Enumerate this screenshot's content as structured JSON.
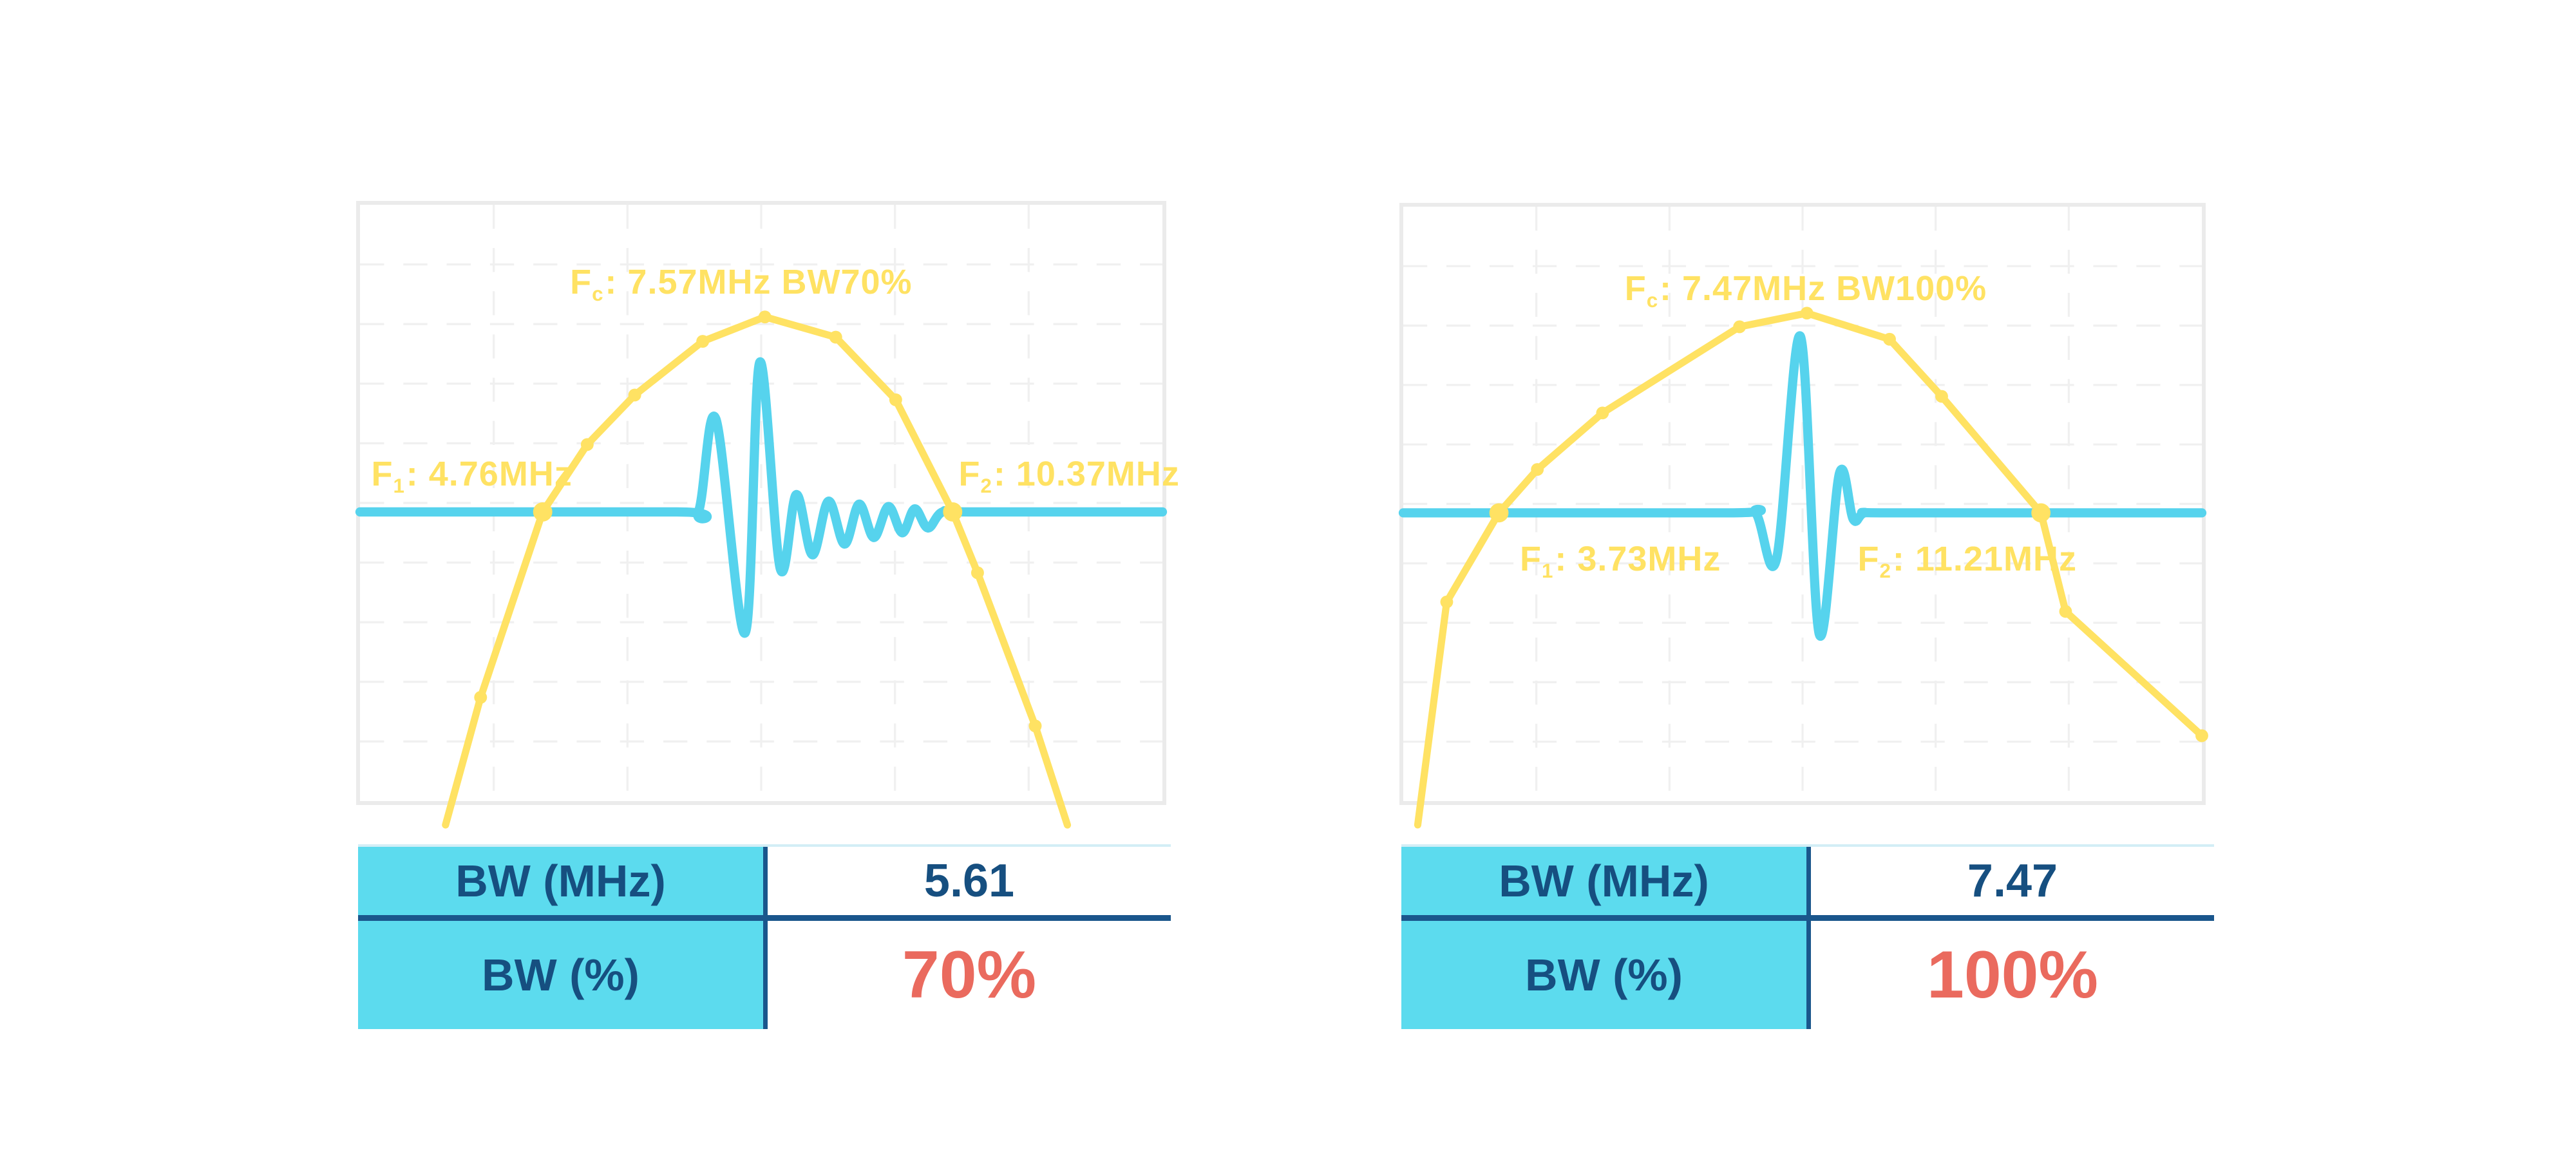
{
  "colors": {
    "yellow": "#FFE263",
    "cyan": "#56D3ED",
    "table_fill": "#5CDBEE",
    "navy": "#164F80",
    "divider_navy": "#1A568C",
    "red": "#EA6A5E",
    "panel_border": "#EBEBEB",
    "grid": "#F0F0F0",
    "table_top_line": "#D3EEF6"
  },
  "panels": [
    {
      "id": "left",
      "fc_label": {
        "prefix": "F",
        "sub": "c",
        "rest": ": 7.57MHz BW70%"
      },
      "f1_label": {
        "prefix": "F",
        "sub": "1",
        "rest": ": 4.76MHz"
      },
      "f2_label": {
        "prefix": "F",
        "sub": "2",
        "rest": ": 10.37MHz"
      },
      "table": {
        "rows": [
          {
            "label": "BW (MHz)",
            "value": "5.61"
          },
          {
            "label": "BW (%)",
            "value": "70%"
          }
        ]
      }
    },
    {
      "id": "right",
      "fc_label": {
        "prefix": "F",
        "sub": "c",
        "rest": ": 7.47MHz BW100%"
      },
      "f1_label": {
        "prefix": "F",
        "sub": "1",
        "rest": ": 3.73MHz"
      },
      "f2_label": {
        "prefix": "F",
        "sub": "2",
        "rest": ": 11.21MHz"
      },
      "table": {
        "rows": [
          {
            "label": "BW (MHz)",
            "value": "7.47"
          },
          {
            "label": "BW (%)",
            "value": "100%"
          }
        ]
      }
    }
  ],
  "chart_data": [
    {
      "type": "line",
      "title": "Fc: 7.57MHz BW70%",
      "annotations": [
        "Fc: 7.57MHz BW70%",
        "F1: 4.76MHz",
        "F2: 10.37MHz"
      ],
      "fc_mhz": 7.57,
      "f1_mhz": 4.76,
      "f2_mhz": 10.37,
      "bw_mhz": 5.61,
      "bw_percent": 70,
      "xlabel": "",
      "ylabel": "",
      "xlim": [
        2.26,
        13.24
      ],
      "ylim": [
        0,
        1
      ],
      "threshold_amp": 0.485,
      "grid": {
        "cols": 6,
        "rows": 10,
        "style": "dashed"
      },
      "series": [
        {
          "name": "spectrum",
          "points": [
            [
              3.43,
              -0.04,
              ""
            ],
            [
              3.91,
              0.174,
              "dot"
            ],
            [
              4.76,
              0.485,
              "big"
            ],
            [
              5.37,
              0.598,
              "dot"
            ],
            [
              6.02,
              0.681,
              "dot"
            ],
            [
              6.95,
              0.771,
              "dot"
            ],
            [
              7.8,
              0.812,
              "dot"
            ],
            [
              8.77,
              0.778,
              "dot"
            ],
            [
              9.59,
              0.673,
              "dot"
            ],
            [
              10.37,
              0.485,
              "big"
            ],
            [
              10.71,
              0.383,
              "dot"
            ],
            [
              11.5,
              0.126,
              "dot"
            ],
            [
              11.94,
              -0.04,
              ""
            ]
          ]
        },
        {
          "name": "pulse",
          "points": [
            [
              2.26,
              0.485
            ],
            [
              6.6,
              0.485
            ],
            [
              6.89,
              0.485
            ],
            [
              7.13,
              0.641
            ],
            [
              7.53,
              0.282
            ],
            [
              7.73,
              0.736
            ],
            [
              8.01,
              0.39
            ],
            [
              8.23,
              0.514
            ],
            [
              8.45,
              0.413
            ],
            [
              8.67,
              0.503
            ],
            [
              8.89,
              0.431
            ],
            [
              9.09,
              0.498
            ],
            [
              9.29,
              0.442
            ],
            [
              9.49,
              0.494
            ],
            [
              9.68,
              0.45
            ],
            [
              9.85,
              0.49
            ],
            [
              10.03,
              0.458
            ],
            [
              10.23,
              0.485
            ],
            [
              10.6,
              0.485
            ],
            [
              13.24,
              0.485
            ]
          ]
        }
      ]
    },
    {
      "type": "line",
      "title": "Fc: 7.47MHz BW100%",
      "annotations": [
        "Fc: 7.47MHz BW100%",
        "F1: 3.73MHz",
        "F2: 11.21MHz"
      ],
      "fc_mhz": 7.47,
      "f1_mhz": 3.73,
      "f2_mhz": 11.21,
      "bw_mhz": 7.47,
      "bw_percent": 100,
      "xlabel": "",
      "ylabel": "",
      "xlim": [
        2.41,
        13.43
      ],
      "ylim": [
        0,
        1
      ],
      "threshold_amp": 0.485,
      "grid": {
        "cols": 6,
        "rows": 10,
        "style": "dashed"
      },
      "series": [
        {
          "name": "spectrum",
          "points": [
            [
              2.61,
              -0.04,
              ""
            ],
            [
              3.01,
              0.335,
              "dot"
            ],
            [
              3.73,
              0.485,
              "big"
            ],
            [
              4.26,
              0.558,
              "dot"
            ],
            [
              5.16,
              0.653,
              "dot"
            ],
            [
              7.05,
              0.798,
              "dot"
            ],
            [
              7.98,
              0.821,
              "dot"
            ],
            [
              9.12,
              0.777,
              "dot"
            ],
            [
              9.84,
              0.681,
              "dot"
            ],
            [
              11.21,
              0.485,
              "big"
            ],
            [
              11.55,
              0.319,
              "dot"
            ],
            [
              13.43,
              0.11,
              "dot"
            ]
          ]
        },
        {
          "name": "pulse",
          "points": [
            [
              2.41,
              0.485
            ],
            [
              6.9,
              0.485
            ],
            [
              7.27,
              0.485
            ],
            [
              7.56,
              0.407
            ],
            [
              7.89,
              0.782
            ],
            [
              8.15,
              0.281
            ],
            [
              8.43,
              0.552
            ],
            [
              8.62,
              0.474
            ],
            [
              8.78,
              0.485
            ],
            [
              9.2,
              0.485
            ],
            [
              13.43,
              0.485
            ]
          ]
        }
      ]
    }
  ]
}
